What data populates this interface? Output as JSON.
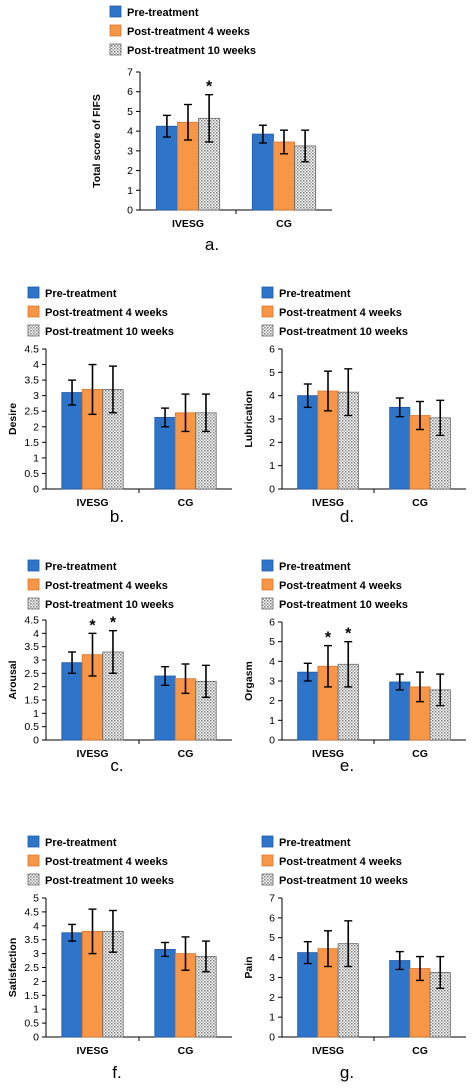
{
  "legend": {
    "entries": [
      "Pre-treatment",
      "Post-treatment 4 weeks",
      "Post-treatment 10 weeks"
    ]
  },
  "colors": {
    "pre": "#2e75c9",
    "post4": "#f79646",
    "post10": "#c8c8c8",
    "axis": "#000000"
  },
  "chart_data": [
    {
      "id": "a",
      "type": "bar",
      "panel_label": "a.",
      "ylabel": "Total score of  FIFS",
      "categories": [
        "IVESG",
        "CG"
      ],
      "ylim": [
        0,
        7
      ],
      "yticks": [
        0,
        1,
        2,
        3,
        4,
        5,
        6,
        7
      ],
      "series": [
        {
          "name": "Pre-treatment",
          "values": [
            4.25,
            3.85
          ],
          "errors": [
            0.55,
            0.45
          ]
        },
        {
          "name": "Post-treatment 4 weeks",
          "values": [
            4.45,
            3.45
          ],
          "errors": [
            0.9,
            0.6
          ]
        },
        {
          "name": "Post-treatment 10 weeks",
          "values": [
            4.65,
            3.25
          ],
          "errors": [
            1.2,
            0.8
          ]
        }
      ],
      "annotations": [
        {
          "category": 0,
          "series": 2,
          "text": "*"
        }
      ]
    },
    {
      "id": "b",
      "type": "bar",
      "panel_label": "b.",
      "ylabel": "Desire",
      "categories": [
        "IVESG",
        "CG"
      ],
      "ylim": [
        0,
        4.5
      ],
      "yticks": [
        0,
        0.5,
        1,
        1.5,
        2,
        2.5,
        3,
        3.5,
        4,
        4.5
      ],
      "ytick_labels": [
        "0",
        "0.5",
        "1",
        "1.5",
        "2",
        "2.5",
        "3",
        "3.5",
        "4",
        "4.5"
      ],
      "series": [
        {
          "name": "Pre-treatment",
          "values": [
            3.1,
            2.3
          ],
          "errors": [
            0.4,
            0.3
          ]
        },
        {
          "name": "Post-treatment 4 weeks",
          "values": [
            3.2,
            2.45
          ],
          "errors": [
            0.8,
            0.6
          ]
        },
        {
          "name": "Post-treatment 10 weeks",
          "values": [
            3.2,
            2.45
          ],
          "errors": [
            0.75,
            0.6
          ]
        }
      ],
      "annotations": []
    },
    {
      "id": "d",
      "type": "bar",
      "panel_label": "d.",
      "ylabel": "Lubrication",
      "categories": [
        "IVESG",
        "CG"
      ],
      "ylim": [
        0,
        6
      ],
      "yticks": [
        0,
        1,
        2,
        3,
        4,
        5,
        6
      ],
      "series": [
        {
          "name": "Pre-treatment",
          "values": [
            4.0,
            3.5
          ],
          "errors": [
            0.5,
            0.4
          ]
        },
        {
          "name": "Post-treatment 4 weeks",
          "values": [
            4.2,
            3.15
          ],
          "errors": [
            0.85,
            0.6
          ]
        },
        {
          "name": "Post-treatment 10 weeks",
          "values": [
            4.15,
            3.05
          ],
          "errors": [
            1.0,
            0.75
          ]
        }
      ],
      "annotations": []
    },
    {
      "id": "c",
      "type": "bar",
      "panel_label": "c.",
      "ylabel": "Arousal",
      "categories": [
        "IVESG",
        "CG"
      ],
      "ylim": [
        0,
        4.5
      ],
      "yticks": [
        0,
        0.5,
        1,
        1.5,
        2,
        2.5,
        3,
        3.5,
        4,
        4.5
      ],
      "ytick_labels": [
        "0",
        "0.5",
        "1",
        "1.5",
        "2",
        "2.5",
        "3",
        "3.5",
        "4",
        "4.5"
      ],
      "series": [
        {
          "name": "Pre-treatment",
          "values": [
            2.9,
            2.4
          ],
          "errors": [
            0.4,
            0.35
          ]
        },
        {
          "name": "Post-treatment 4 weeks",
          "values": [
            3.2,
            2.3
          ],
          "errors": [
            0.8,
            0.55
          ]
        },
        {
          "name": "Post-treatment 10 weeks",
          "values": [
            3.3,
            2.2
          ],
          "errors": [
            0.8,
            0.6
          ]
        }
      ],
      "annotations": [
        {
          "category": 0,
          "series": 1,
          "text": "*"
        },
        {
          "category": 0,
          "series": 2,
          "text": "*"
        }
      ]
    },
    {
      "id": "e",
      "type": "bar",
      "panel_label": "e.",
      "ylabel": "Orgasm",
      "categories": [
        "IVESG",
        "CG"
      ],
      "ylim": [
        0,
        6
      ],
      "yticks": [
        0,
        1,
        2,
        3,
        4,
        5,
        6
      ],
      "series": [
        {
          "name": "Pre-treatment",
          "values": [
            3.45,
            2.95
          ],
          "errors": [
            0.45,
            0.4
          ]
        },
        {
          "name": "Post-treatment 4 weeks",
          "values": [
            3.75,
            2.7
          ],
          "errors": [
            1.05,
            0.75
          ]
        },
        {
          "name": "Post-treatment 10 weeks",
          "values": [
            3.85,
            2.55
          ],
          "errors": [
            1.15,
            0.8
          ]
        }
      ],
      "annotations": [
        {
          "category": 0,
          "series": 1,
          "text": "*"
        },
        {
          "category": 0,
          "series": 2,
          "text": "*"
        }
      ]
    },
    {
      "id": "f",
      "type": "bar",
      "panel_label": "f.",
      "ylabel": "Satisfaction",
      "categories": [
        "IVESG",
        "CG"
      ],
      "ylim": [
        0,
        5
      ],
      "yticks": [
        0,
        0.5,
        1,
        1.5,
        2,
        2.5,
        3,
        3.5,
        4,
        4.5,
        5
      ],
      "ytick_labels": [
        "0",
        "0.5",
        "1",
        "1.5",
        "2",
        "2.5",
        "3",
        "3.5",
        "4",
        "4.5",
        "5"
      ],
      "series": [
        {
          "name": "Pre-treatment",
          "values": [
            3.75,
            3.15
          ],
          "errors": [
            0.3,
            0.25
          ]
        },
        {
          "name": "Post-treatment 4 weeks",
          "values": [
            3.8,
            3.0
          ],
          "errors": [
            0.8,
            0.6
          ]
        },
        {
          "name": "Post-treatment 10 weeks",
          "values": [
            3.8,
            2.9
          ],
          "errors": [
            0.75,
            0.55
          ]
        }
      ],
      "annotations": []
    },
    {
      "id": "g",
      "type": "bar",
      "panel_label": "g.",
      "ylabel": "Pain",
      "categories": [
        "IVESG",
        "CG"
      ],
      "ylim": [
        0,
        7
      ],
      "yticks": [
        0,
        1,
        2,
        3,
        4,
        5,
        6,
        7
      ],
      "series": [
        {
          "name": "Pre-treatment",
          "values": [
            4.25,
            3.85
          ],
          "errors": [
            0.55,
            0.45
          ]
        },
        {
          "name": "Post-treatment 4 weeks",
          "values": [
            4.45,
            3.45
          ],
          "errors": [
            0.9,
            0.6
          ]
        },
        {
          "name": "Post-treatment 10 weeks",
          "values": [
            4.7,
            3.25
          ],
          "errors": [
            1.15,
            0.8
          ]
        }
      ],
      "annotations": []
    }
  ]
}
